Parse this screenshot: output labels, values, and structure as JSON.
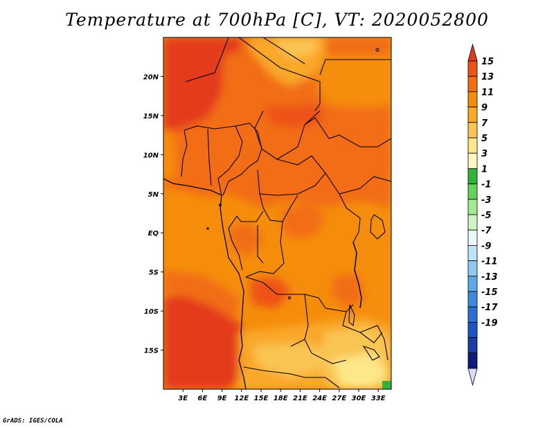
{
  "title": "Temperature at 700hPa [C], VT: 2020052800",
  "credit": "GrADS: IGES/COLA",
  "map": {
    "lon_range": [
      0,
      35
    ],
    "lat_range": [
      -20,
      25
    ],
    "lat_ticks": [
      {
        "value": 20,
        "label": "20N"
      },
      {
        "value": 15,
        "label": "15N"
      },
      {
        "value": 10,
        "label": "10N"
      },
      {
        "value": 5,
        "label": "5N"
      },
      {
        "value": 0,
        "label": "EQ"
      },
      {
        "value": -5,
        "label": "5S"
      },
      {
        "value": -10,
        "label": "10S"
      },
      {
        "value": -15,
        "label": "15S"
      }
    ],
    "lon_ticks": [
      {
        "value": 3,
        "label": "3E"
      },
      {
        "value": 6,
        "label": "6E"
      },
      {
        "value": 9,
        "label": "9E"
      },
      {
        "value": 12,
        "label": "12E"
      },
      {
        "value": 15,
        "label": "15E"
      },
      {
        "value": 18,
        "label": "18E"
      },
      {
        "value": 21,
        "label": "21E"
      },
      {
        "value": 24,
        "label": "24E"
      },
      {
        "value": 27,
        "label": "27E"
      },
      {
        "value": 30,
        "label": "30E"
      },
      {
        "value": 33,
        "label": "33E"
      }
    ]
  },
  "colorbar": {
    "labels": [
      "15",
      "13",
      "11",
      "9",
      "7",
      "5",
      "3",
      "1",
      "-1",
      "-3",
      "-5",
      "-7",
      "-9",
      "-11",
      "-13",
      "-15",
      "-17",
      "-19"
    ],
    "colors": [
      "#e33a1c",
      "#ed5315",
      "#f26d12",
      "#f58d0b",
      "#f9a82a",
      "#fac553",
      "#fde789",
      "#fff9c0",
      "#2eb43a",
      "#62d35a",
      "#a2ec92",
      "#cff5c4",
      "#eaf7fb",
      "#bfe3f6",
      "#8dc9f0",
      "#5ea9e8",
      "#3f88de",
      "#2b6ed4",
      "#1e55c5",
      "#1a3ca7",
      "#0d1c7c",
      "#dadbf5"
    ]
  }
}
